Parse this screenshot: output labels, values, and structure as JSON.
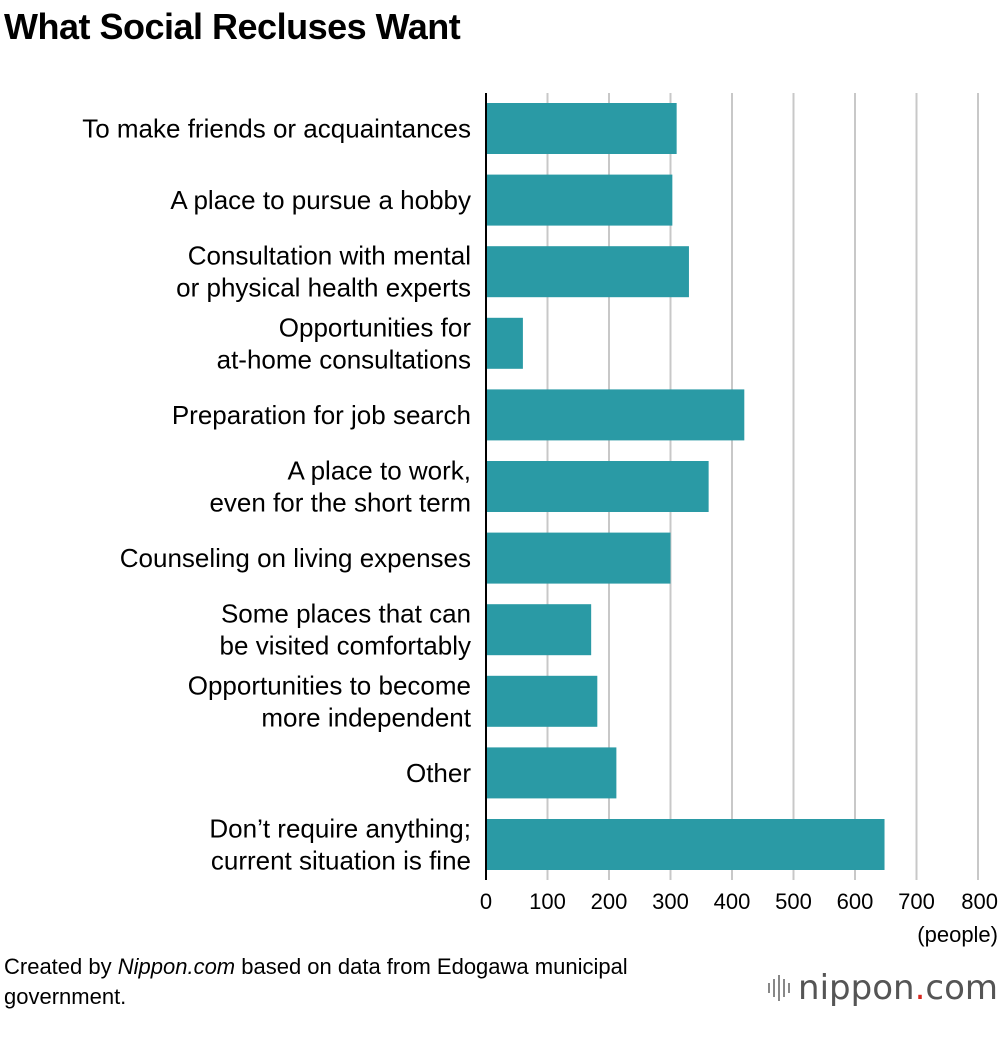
{
  "title": "What Social Recluses Want",
  "chart_data": {
    "type": "bar",
    "orientation": "horizontal",
    "title": "What Social Recluses Want",
    "categories": [
      [
        "To make friends or acquaintances"
      ],
      [
        "A place to pursue a hobby"
      ],
      [
        "Consultation with mental",
        "or physical health experts"
      ],
      [
        "Opportunities for",
        "at-home consultations"
      ],
      [
        "Preparation for job search"
      ],
      [
        "A place to work,",
        "even for the short term"
      ],
      [
        "Counseling on living expenses"
      ],
      [
        "Some places that can",
        "be visited comfortably"
      ],
      [
        "Opportunities to become",
        "more independent"
      ],
      [
        "Other"
      ],
      [
        "Don’t require anything;",
        "current situation is fine"
      ]
    ],
    "values": [
      310,
      303,
      330,
      60,
      420,
      362,
      300,
      171,
      181,
      212,
      648
    ],
    "xlim": [
      0,
      800
    ],
    "xticks": [
      "0",
      "100",
      "200",
      "300",
      "400",
      "500",
      "600",
      "700",
      "800"
    ],
    "xticks_values": [
      0,
      100,
      200,
      300,
      400,
      500,
      600,
      700,
      800
    ],
    "xlabel": "(people)",
    "grid": true,
    "bar_color": "#2a9aa5",
    "grid_color": "#c8c8c8"
  },
  "footer": {
    "prefix": "Created by ",
    "source": "Nippon.com",
    "suffix": " based on data from Edogawa municipal government."
  },
  "logo": {
    "name": "nippon",
    "dot": ".",
    "tld": "com",
    "accent_color": "#d7261e"
  }
}
